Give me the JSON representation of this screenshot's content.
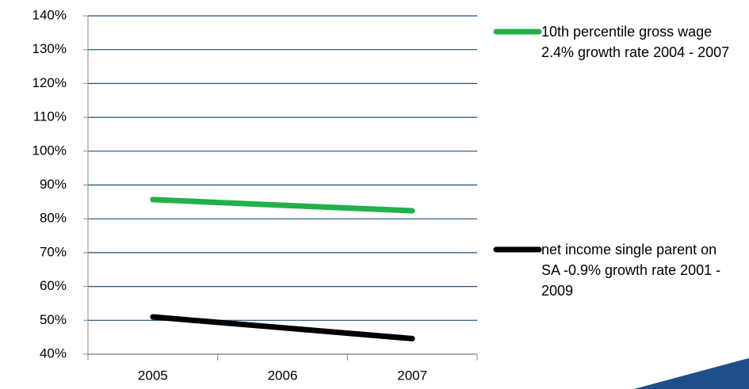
{
  "chart_data": {
    "type": "line",
    "categories": [
      "2005",
      "2006",
      "2007"
    ],
    "series": [
      {
        "name": "10th percentile gross wage 2.4% growth rate 2004 - 2007",
        "color": "#22b04b",
        "values": [
          85.7,
          84.0,
          82.4
        ]
      },
      {
        "name": "net income single parent on SA -0.9% growth rate 2001 - 2009",
        "color": "#000000",
        "values": [
          51.0,
          47.8,
          44.6
        ]
      }
    ],
    "ylim": [
      40,
      140
    ],
    "yticks": [
      {
        "value": 40,
        "label": "40%"
      },
      {
        "value": 50,
        "label": "50%"
      },
      {
        "value": 60,
        "label": "60%"
      },
      {
        "value": 70,
        "label": "70%"
      },
      {
        "value": 80,
        "label": "80%"
      },
      {
        "value": 90,
        "label": "90%"
      },
      {
        "value": 100,
        "label": "100%"
      },
      {
        "value": 110,
        "label": "110%"
      },
      {
        "value": 120,
        "label": "120%"
      },
      {
        "value": 130,
        "label": "130%"
      },
      {
        "value": 140,
        "label": "140%"
      }
    ],
    "grid": true,
    "legend": "right"
  }
}
